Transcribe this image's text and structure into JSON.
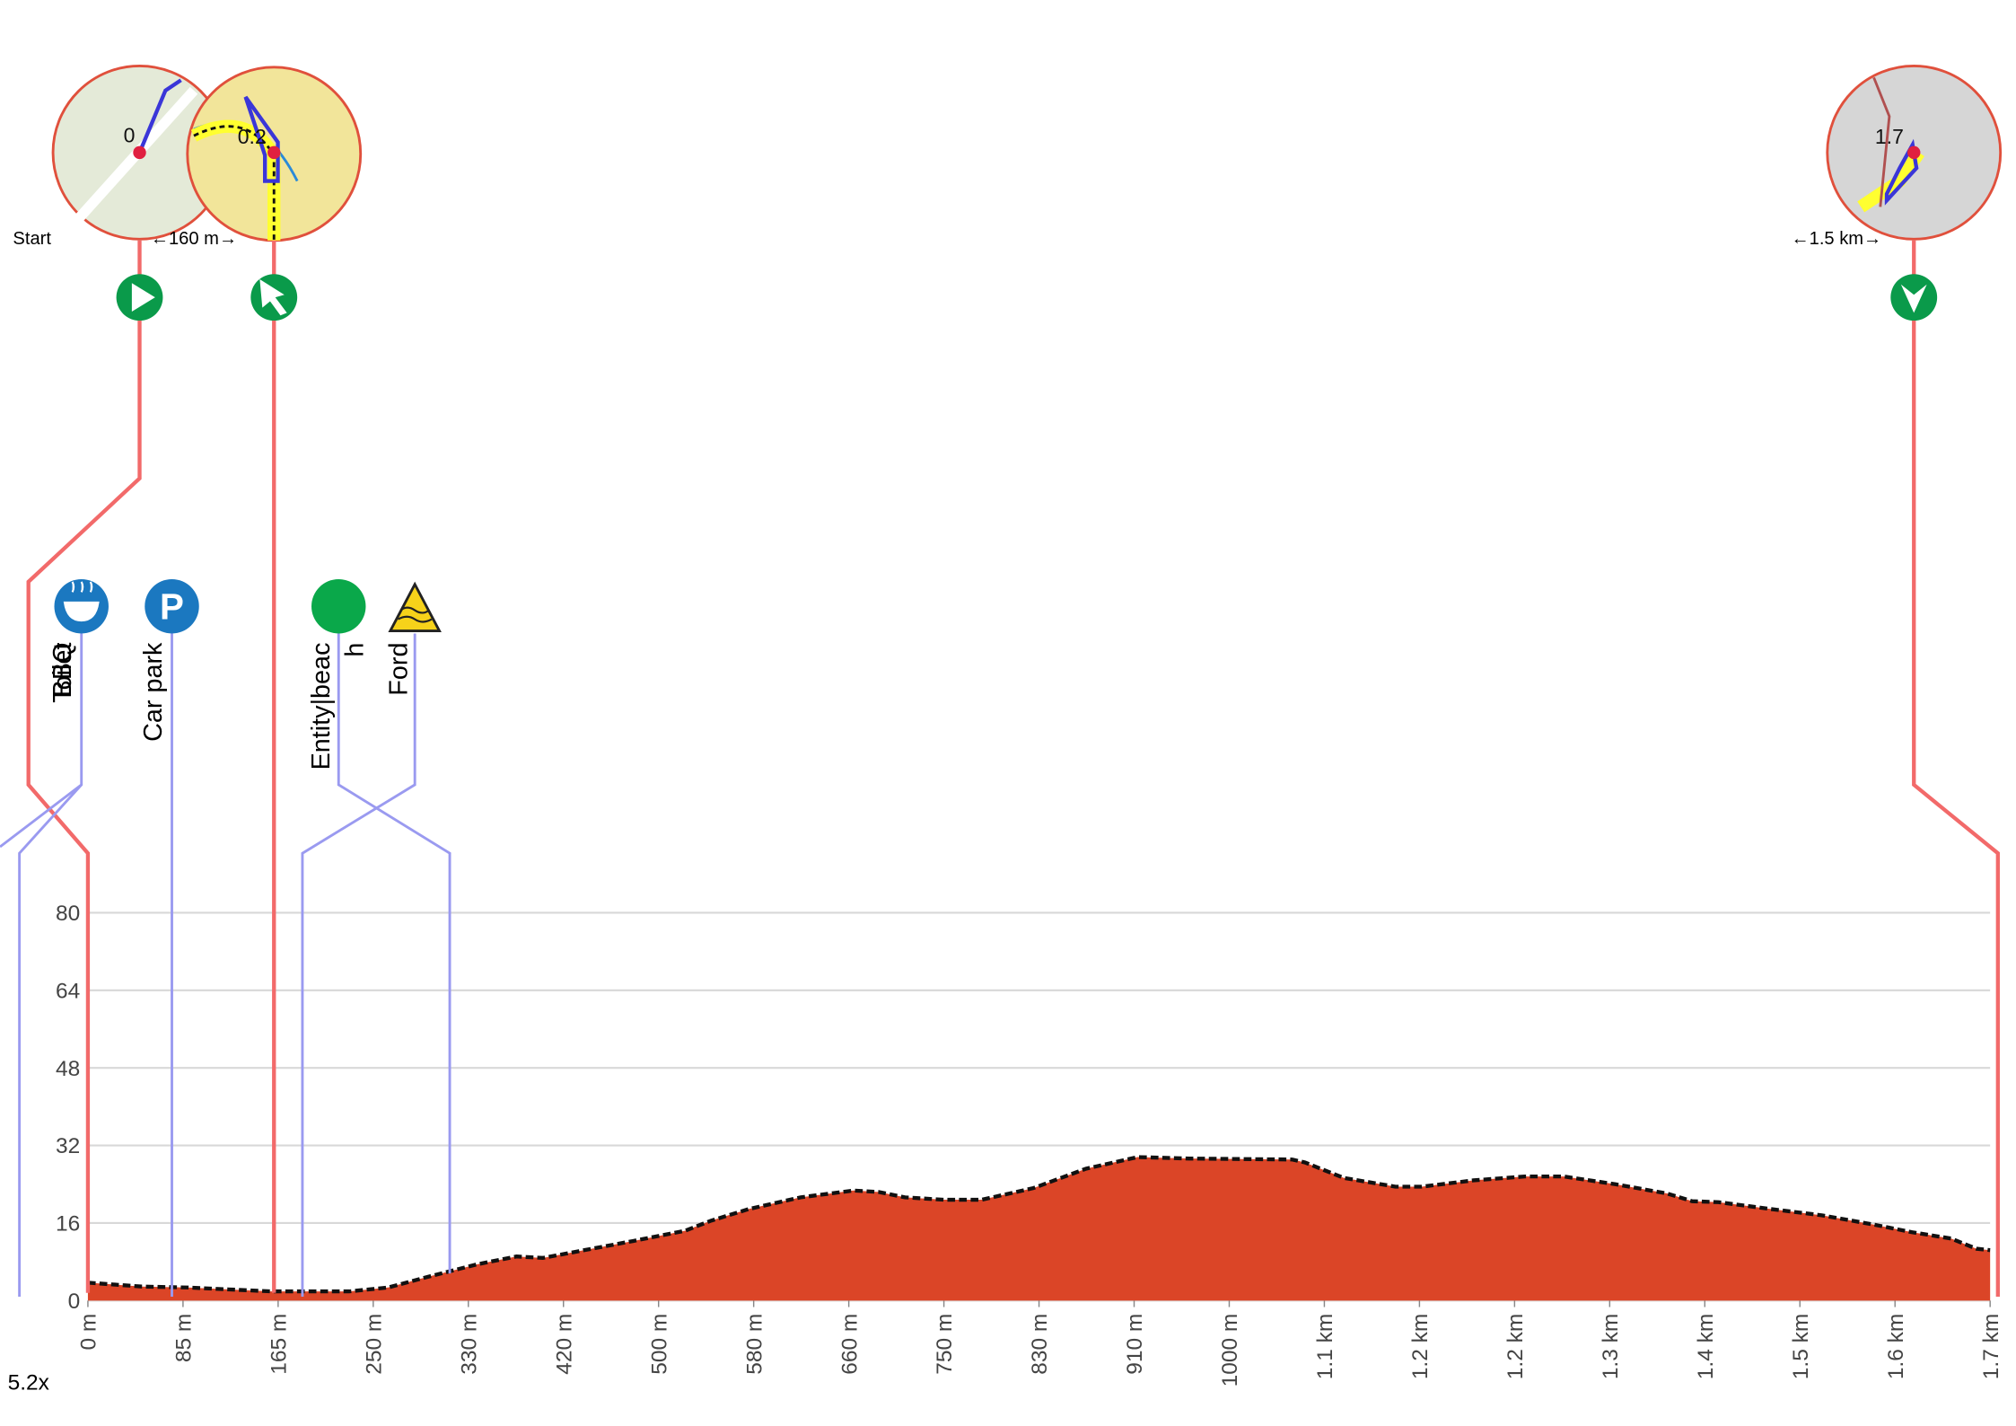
{
  "chart_data": {
    "type": "area",
    "x": [
      0,
      47,
      87,
      160,
      228,
      262,
      295,
      340,
      374,
      397,
      476,
      521,
      544,
      577,
      622,
      668,
      690,
      713,
      747,
      780,
      825,
      871,
      916,
      961,
      1051,
      1062,
      1096,
      1141,
      1164,
      1209,
      1254,
      1288,
      1333,
      1378,
      1400,
      1423,
      1468,
      1513,
      1558,
      1592,
      1626,
      1648,
      1660
    ],
    "values": [
      3.7,
      2.9,
      2.7,
      1.9,
      1.9,
      2.7,
      4.8,
      7.5,
      9.1,
      8.8,
      12.3,
      14.4,
      16.5,
      18.9,
      21.3,
      22.7,
      22.4,
      21.3,
      20.8,
      20.8,
      23.2,
      27.2,
      29.6,
      29.3,
      29.1,
      28.5,
      25.3,
      23.5,
      23.5,
      24.8,
      25.6,
      25.6,
      24.0,
      22.1,
      20.5,
      20.3,
      18.9,
      17.6,
      15.7,
      14.1,
      12.8,
      10.7,
      10.4
    ],
    "color": "#db4527",
    "line_color": "#111111",
    "xlim": [
      0,
      1660
    ],
    "ylim": [
      0,
      80
    ],
    "yticks": [
      0,
      16,
      32,
      48,
      64,
      80
    ],
    "xticks": [
      {
        "value": 0,
        "label": "0 m"
      },
      {
        "value": 83,
        "label": "85 m"
      },
      {
        "value": 166,
        "label": "165 m"
      },
      {
        "value": 249,
        "label": "250 m"
      },
      {
        "value": 332,
        "label": "330 m"
      },
      {
        "value": 415,
        "label": "420 m"
      },
      {
        "value": 498,
        "label": "500 m"
      },
      {
        "value": 581,
        "label": "580 m"
      },
      {
        "value": 664,
        "label": "660 m"
      },
      {
        "value": 747,
        "label": "750 m"
      },
      {
        "value": 830,
        "label": "830 m"
      },
      {
        "value": 913,
        "label": "910 m"
      },
      {
        "value": 996,
        "label": "1000 m"
      },
      {
        "value": 1079,
        "label": "1.1 km"
      },
      {
        "value": 1162,
        "label": "1.2 km"
      },
      {
        "value": 1245,
        "label": "1.2 km"
      },
      {
        "value": 1328,
        "label": "1.3 km"
      },
      {
        "value": 1411,
        "label": "1.4 km"
      },
      {
        "value": 1494,
        "label": "1.5 km"
      },
      {
        "value": 1577,
        "label": "1.6 km"
      },
      {
        "value": 1660,
        "label": "1.7 km"
      }
    ],
    "grid": true
  },
  "zoom_label": "5.2x",
  "waypoints": [
    {
      "label": "Start",
      "map_label": "0"
    },
    {
      "label": "←160 m→",
      "map_label": "0.2"
    },
    {
      "label": "←1.5 km→",
      "map_label": "1.7"
    }
  ],
  "pois": [
    {
      "lines": [
        "Toilet"
      ]
    },
    {
      "lines": [
        "BBQ"
      ]
    },
    {
      "lines": [
        "Car park"
      ]
    },
    {
      "lines": [
        "Entity|beac",
        "h"
      ]
    },
    {
      "lines": [
        "Ford"
      ]
    }
  ]
}
